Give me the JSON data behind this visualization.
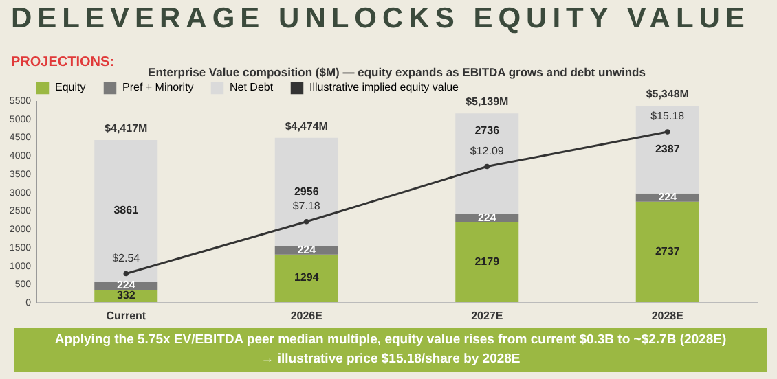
{
  "chart_data": {
    "type": "bar",
    "title": "DELEVERAGE UNLOCKS EQUITY VALUE",
    "subtitle": "Enterprise Value composition ($M) — equity expands as EBITDA grows and debt unwinds",
    "annotations": [
      "PROJECTIONS:",
      "Applying the 5.75x EV/EBITDA peer median multiple, equity value rises from current $0.3B to ~$2.7B (2028E)",
      "→ illustrative price $15.18/share by 2028E"
    ],
    "categories": [
      "Current",
      "2026E",
      "2027E",
      "2028E"
    ],
    "stacked": true,
    "data_labels": true,
    "totals": [
      "$4,417M",
      "$4,474M",
      "$5,139M",
      "$5,348M"
    ],
    "series": [
      {
        "name": "Equity",
        "color": "#9bb843",
        "values": [
          332,
          1294,
          2179,
          2737
        ]
      },
      {
        "name": "Pref + Minority",
        "color": "#7a7a7a",
        "values": [
          224,
          224,
          224,
          224
        ]
      },
      {
        "name": "Net Debt",
        "color": "#dadada",
        "values": [
          3861,
          2956,
          2736,
          2387
        ]
      },
      {
        "name": "Illustrative implied equity value",
        "type": "line",
        "axis": "y2",
        "color": "#333333",
        "values": [
          2.54,
          7.18,
          12.09,
          15.18
        ],
        "value_labels": [
          "$2.54",
          "$7.18",
          "$12.09",
          "$15.18"
        ]
      }
    ],
    "ylim": [
      0,
      5500
    ],
    "yticks": [
      0,
      500,
      1000,
      1500,
      2000,
      2500,
      3000,
      3500,
      4000,
      4500,
      5000,
      5500
    ],
    "y2lim": [
      0,
      18
    ],
    "legend": "top",
    "grid": false,
    "marker": "circle",
    "line_style": "solid"
  }
}
